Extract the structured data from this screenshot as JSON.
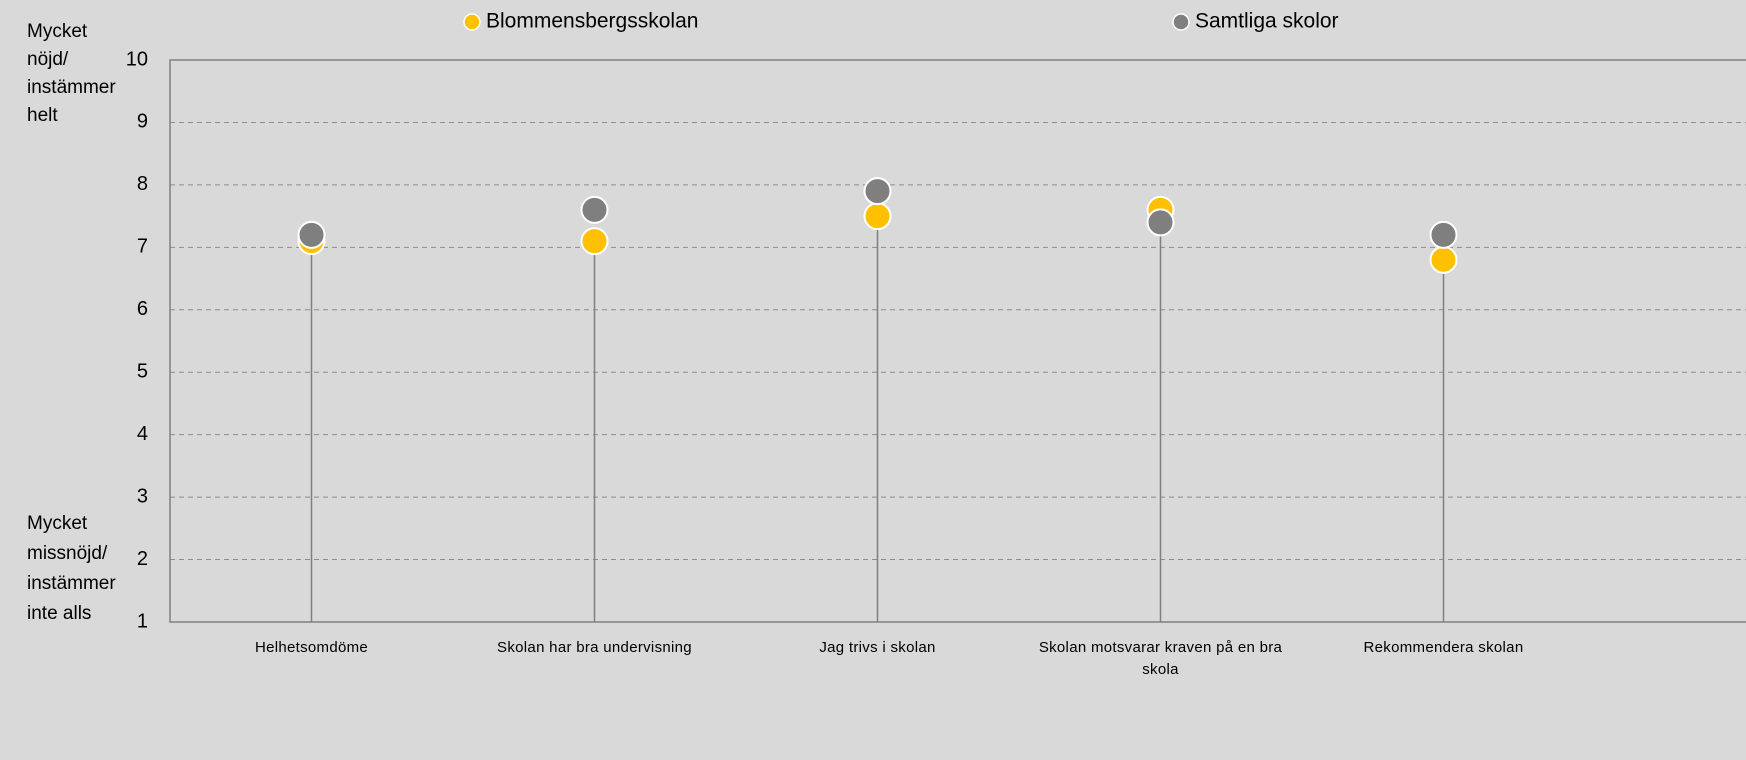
{
  "chart_data": {
    "type": "dot",
    "categories": [
      "Helhetsomdöme",
      "Skolan har bra undervisning",
      "Jag trivs i skolan",
      "Skolan motsvarar kraven på en bra skola",
      "Rekommendera skolan"
    ],
    "series": [
      {
        "name": "Blommensbergsskolan",
        "color": "#ffc000",
        "values": [
          7.1,
          7.1,
          7.5,
          7.6,
          6.8
        ]
      },
      {
        "name": "Samtliga skolor",
        "color": "#7f7f7f",
        "values": [
          7.2,
          7.6,
          7.9,
          7.4,
          7.2
        ]
      }
    ],
    "ylim": [
      1,
      10
    ],
    "yticks": [
      1,
      2,
      3,
      4,
      5,
      6,
      7,
      8,
      9,
      10
    ],
    "grid": true,
    "y_label_top": [
      "Mycket",
      "nöjd/",
      "instämmer",
      "helt"
    ],
    "y_label_bottom": [
      "Mycket",
      "missnöjd/",
      "instämmer",
      "inte alls"
    ]
  }
}
